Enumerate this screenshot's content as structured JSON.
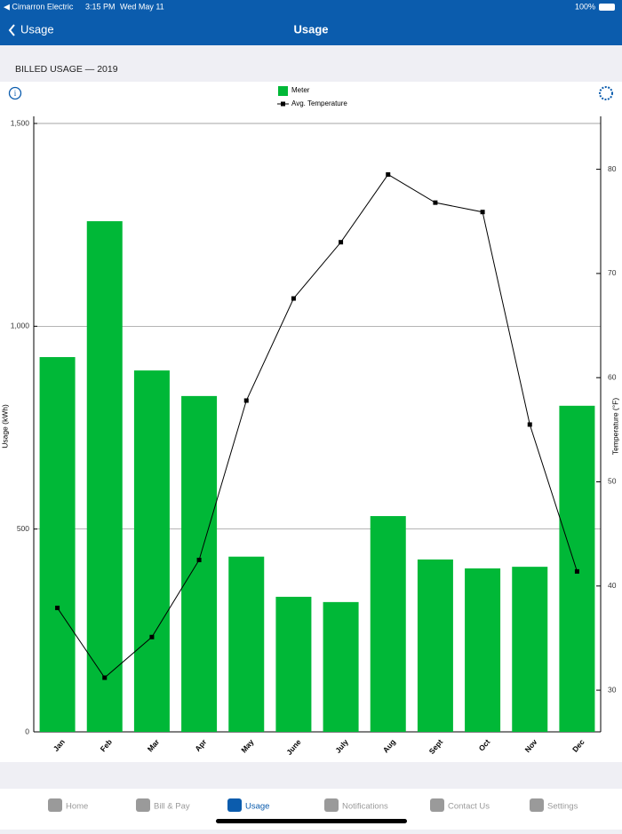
{
  "status_bar": {
    "carrier": "◀ Cimarron Electric",
    "time": "3:15 PM",
    "date": "Wed May 11",
    "battery": "100%"
  },
  "nav": {
    "back": "Usage",
    "title": "Usage"
  },
  "section_title": "BILLED USAGE — 2019",
  "chart_data": {
    "type": "combo",
    "categories": [
      "Jan",
      "Feb",
      "Mar",
      "Apr",
      "May",
      "June",
      "July",
      "Aug",
      "Sept",
      "Oct",
      "Nov",
      "Dec"
    ],
    "series": [
      {
        "name": "Meter",
        "type": "bar",
        "color": "#00b837",
        "values": [
          924,
          1259,
          891,
          828,
          432,
          333,
          320,
          532,
          425,
          403,
          407,
          804
        ]
      },
      {
        "name": "Avg. Temperature",
        "type": "line",
        "color": "#000000",
        "axis": "y2",
        "values": [
          37.9,
          31.2,
          35.1,
          42.5,
          57.8,
          67.6,
          73.0,
          79.5,
          76.8,
          75.9,
          55.5,
          41.4
        ]
      }
    ],
    "ylabel": "Usage (kWh)",
    "y2label": "Temperature (°F)",
    "ylim": [
      0,
      1500
    ],
    "yticks": [
      0,
      500,
      {
        "value": 1000,
        "label": "1,000"
      },
      {
        "value": 1500,
        "label": "1,500"
      }
    ],
    "y2lim": [
      26,
      84.4
    ],
    "y2ticks": [
      30,
      40,
      50,
      60,
      70,
      80
    ],
    "grid": true
  },
  "tabs": [
    {
      "label": "Home"
    },
    {
      "label": "Bill & Pay"
    },
    {
      "label": "Usage"
    },
    {
      "label": "Notifications"
    },
    {
      "label": "Contact Us"
    },
    {
      "label": "Settings"
    }
  ],
  "active_tab": 2
}
